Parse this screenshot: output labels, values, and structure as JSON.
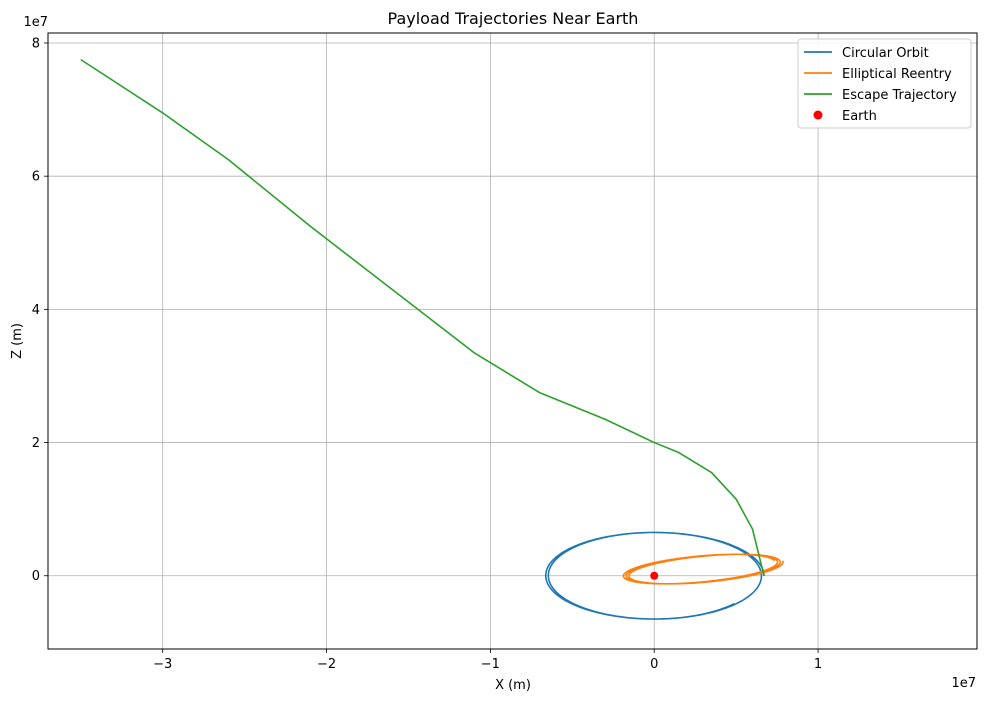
{
  "chart_data": {
    "type": "line",
    "title": "Payload Trajectories Near Earth",
    "xlabel": "X (m)",
    "ylabel": "Z (m)",
    "x_offset_label": "1e7",
    "y_offset_label": "1e7",
    "scale": 10000000,
    "xlim": [
      -3.7,
      1.97
    ],
    "ylim": [
      -1.1,
      8.15
    ],
    "xticks": [
      -3,
      -2,
      -1,
      0,
      1
    ],
    "xtick_labels": [
      "−3",
      "−2",
      "−1",
      "0",
      "1"
    ],
    "yticks": [
      0,
      2,
      4,
      6,
      8
    ],
    "ytick_labels": [
      "0",
      "2",
      "4",
      "6",
      "8"
    ],
    "grid": true,
    "legend_position": "top-right",
    "series": [
      {
        "name": "Circular Orbit",
        "color": "#1f77b4",
        "kind": "spiral",
        "cx": 0,
        "cz": 0,
        "rx_start": 0.67,
        "rx_end": 0.64,
        "rz": 0.65,
        "start_angle_deg": 0,
        "sweep_deg": 680
      },
      {
        "name": "Elliptical Reentry",
        "color": "#ff7f0e",
        "kind": "ellipse-loops",
        "cx": 0.27,
        "cz": 0.1,
        "a": 0.48,
        "b": 0.19,
        "tilt_deg": 15,
        "loops": 3,
        "drift_x": 0.05,
        "drift_z": 0.0
      },
      {
        "name": "Escape Trajectory",
        "color": "#2ca02c",
        "kind": "polyline",
        "x": [
          0.67,
          0.6,
          0.5,
          0.35,
          0.15,
          0.0,
          -0.3,
          -0.7,
          -1.1,
          -1.6,
          -2.1,
          -2.6,
          -3.0,
          -3.5
        ],
        "z": [
          0.0,
          0.7,
          1.15,
          1.55,
          1.85,
          2.0,
          2.35,
          2.75,
          3.35,
          4.3,
          5.25,
          6.25,
          6.95,
          7.75
        ]
      }
    ],
    "markers": [
      {
        "name": "Earth",
        "x": 0,
        "z": 0,
        "color": "#ff0000"
      }
    ]
  }
}
